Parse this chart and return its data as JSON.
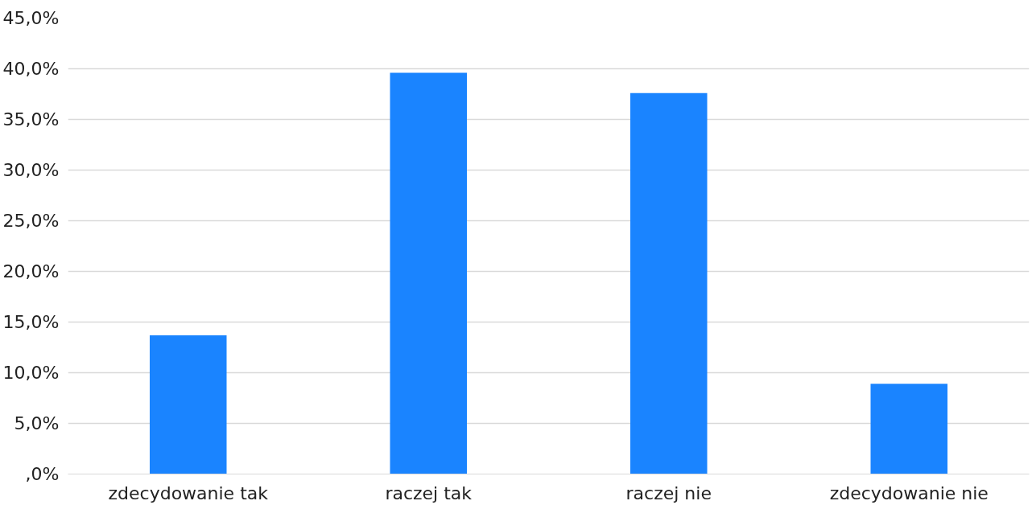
{
  "chart_data": {
    "type": "bar",
    "categories": [
      "zdecydowanie tak",
      "raczej tak",
      "raczej nie",
      "zdecydowanie nie"
    ],
    "values": [
      13.7,
      39.6,
      37.6,
      8.9
    ],
    "color": "#1a84ff",
    "ylim": [
      0,
      45
    ],
    "yticks": [
      {
        "value": 0,
        "label": ",0%"
      },
      {
        "value": 5,
        "label": "5,0%"
      },
      {
        "value": 10,
        "label": "10,0%"
      },
      {
        "value": 15,
        "label": "15,0%"
      },
      {
        "value": 20,
        "label": "20,0%"
      },
      {
        "value": 25,
        "label": "25,0%"
      },
      {
        "value": 30,
        "label": "30,0%"
      },
      {
        "value": 35,
        "label": "35,0%"
      },
      {
        "value": 40,
        "label": "40,0%"
      },
      {
        "value": 45,
        "label": "45,0%"
      }
    ],
    "grid": "y"
  }
}
